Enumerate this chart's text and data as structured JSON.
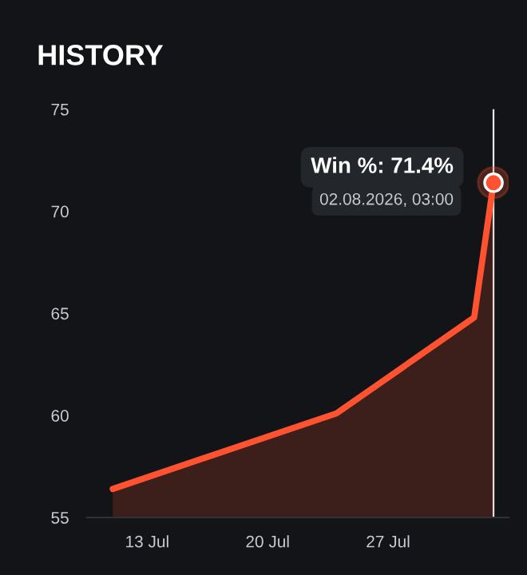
{
  "chart_data": {
    "type": "area",
    "title": "HISTORY",
    "x": [
      "2026-07-11",
      "2026-07-24",
      "2026-08-01",
      "2026-08-02T03:00"
    ],
    "series": [
      {
        "color": "#ff5230",
        "values": [
          56.4,
          60.1,
          64.8,
          71.4
        ]
      }
    ],
    "xlim": [
      "2026-07-09T12:00",
      "2026-08-03T00:00"
    ],
    "xticks": [
      {
        "value": "2026-07-13",
        "label": "13 Jul"
      },
      {
        "value": "2026-07-20",
        "label": "20 Jul"
      },
      {
        "value": "2026-07-27",
        "label": "27 Jul"
      }
    ],
    "ylim": [
      55,
      75
    ],
    "yticks": [
      55,
      60,
      65,
      70,
      75
    ],
    "ref_lines": [
      {
        "axis": "x",
        "value": "2026-08-02T03:00",
        "label": null,
        "color": "#e8e8e8"
      }
    ],
    "annotations": [
      {
        "text": "Win %: 71.4%",
        "x": "2026-08-02T03:00",
        "y": 71.4
      },
      {
        "text": "02.08.2026, 03:00",
        "x": "2026-08-02T03:00",
        "y": 71.4
      }
    ],
    "grid": false,
    "legend": false
  }
}
